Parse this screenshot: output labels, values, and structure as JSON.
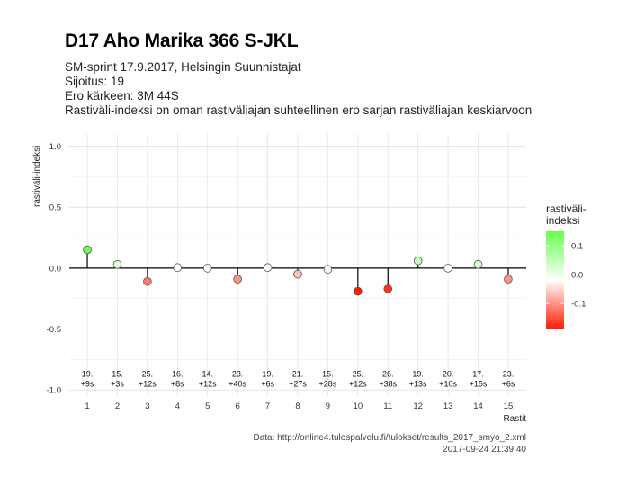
{
  "title": "D17 Aho Marika 366 S-JKL",
  "subtitle_lines": [
    "SM-sprint 17.9.2017, Helsingin Suunnistajat",
    "Sijoitus: 19",
    "Ero kärkeen: 3M 44S",
    "Rastiväli-indeksi on oman rastiväliajan suhteellinen ero sarjan rastiväliajan keskiarvoon"
  ],
  "caption_lines": [
    "Data: http://online4.tulospalvelu.fi/tulokset/results_2017_smyo_2.xml",
    "2017-09-24 21:39:40"
  ],
  "legend": {
    "title_lines": [
      "rastiväli-",
      "indeksi"
    ],
    "ticks": [
      0.1,
      0.0,
      -0.1
    ],
    "tick_labels": [
      "0.1",
      "0.0",
      "-0.1"
    ],
    "colors": {
      "high": "#66ff4d",
      "mid": "#ffffff",
      "low": "#ff1a00"
    },
    "range": [
      -0.19,
      0.15
    ]
  },
  "chart_data": {
    "type": "scatter",
    "xlabel": "Rastit",
    "ylabel": "rastiväli-indeksi",
    "ylim": [
      -1.05,
      1.1
    ],
    "yticks": [
      1.0,
      0.5,
      0.0,
      -0.5,
      -1.0
    ],
    "ytick_labels": [
      "1.0",
      "0.5",
      "0.0",
      "-0.5",
      "-1.0"
    ],
    "xlim": [
      0.4,
      15.6
    ],
    "xticks": [
      1,
      2,
      3,
      4,
      5,
      6,
      7,
      8,
      9,
      10,
      11,
      12,
      13,
      14,
      15
    ],
    "xtick_labels": [
      "1",
      "2",
      "3",
      "4",
      "5",
      "6",
      "7",
      "8",
      "9",
      "10",
      "11",
      "12",
      "13",
      "14",
      "15"
    ],
    "grid": true,
    "points": [
      {
        "x": 1,
        "y": 0.15,
        "rank": "19.",
        "diff": "+9s"
      },
      {
        "x": 2,
        "y": 0.03,
        "rank": "15.",
        "diff": "+3s"
      },
      {
        "x": 3,
        "y": -0.11,
        "rank": "25.",
        "diff": "+12s"
      },
      {
        "x": 4,
        "y": 0.005,
        "rank": "16.",
        "diff": "+8s"
      },
      {
        "x": 5,
        "y": 0.0,
        "rank": "14.",
        "diff": "+12s"
      },
      {
        "x": 6,
        "y": -0.09,
        "rank": "23.",
        "diff": "+40s"
      },
      {
        "x": 7,
        "y": 0.005,
        "rank": "19.",
        "diff": "+6s"
      },
      {
        "x": 8,
        "y": -0.05,
        "rank": "21.",
        "diff": "+27s"
      },
      {
        "x": 9,
        "y": -0.01,
        "rank": "15.",
        "diff": "+28s"
      },
      {
        "x": 10,
        "y": -0.19,
        "rank": "25.",
        "diff": "+12s"
      },
      {
        "x": 11,
        "y": -0.17,
        "rank": "26.",
        "diff": "+38s"
      },
      {
        "x": 12,
        "y": 0.06,
        "rank": "19.",
        "diff": "+13s"
      },
      {
        "x": 13,
        "y": 0.0,
        "rank": "20.",
        "diff": "+10s"
      },
      {
        "x": 14,
        "y": 0.03,
        "rank": "17.",
        "diff": "+15s"
      },
      {
        "x": 15,
        "y": -0.09,
        "rank": "23.",
        "diff": "+6s"
      }
    ]
  }
}
